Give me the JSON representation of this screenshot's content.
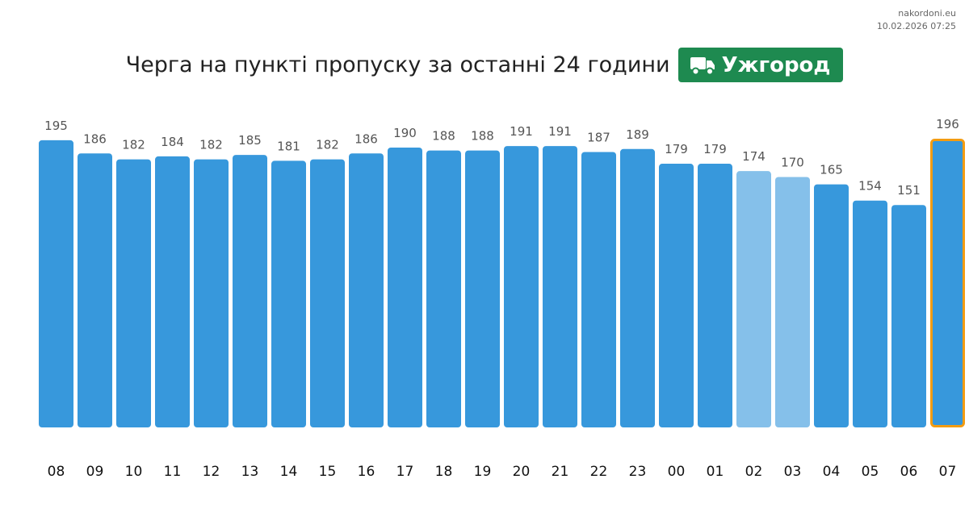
{
  "source": {
    "site": "nakordoni.eu",
    "timestamp": "10.02.2026 07:25"
  },
  "title": "Черга на пункті пропуску за останні 24 години",
  "checkpoint": {
    "name": "Ужгород",
    "icon": "truck-icon",
    "color": "#1e8a50"
  },
  "colors": {
    "bar": "#3798dc",
    "bar_light": "#85c0ea",
    "highlight_border": "#f39c12",
    "label": "#555555",
    "tick": "#111111"
  },
  "chart_data": {
    "type": "bar",
    "title": "Черга на пункті пропуску за останні 24 години",
    "xlabel": "",
    "ylabel": "",
    "categories": [
      "08",
      "09",
      "10",
      "11",
      "12",
      "13",
      "14",
      "15",
      "16",
      "17",
      "18",
      "19",
      "20",
      "21",
      "22",
      "23",
      "00",
      "01",
      "02",
      "03",
      "04",
      "05",
      "06",
      "07"
    ],
    "values": [
      195,
      186,
      182,
      184,
      182,
      185,
      181,
      182,
      186,
      190,
      188,
      188,
      191,
      191,
      187,
      189,
      179,
      179,
      174,
      170,
      165,
      154,
      151,
      196
    ],
    "light_bars": [
      "02",
      "03"
    ],
    "highlight": "07",
    "ylim": [
      0,
      196
    ],
    "grid": false,
    "legend": "none"
  }
}
